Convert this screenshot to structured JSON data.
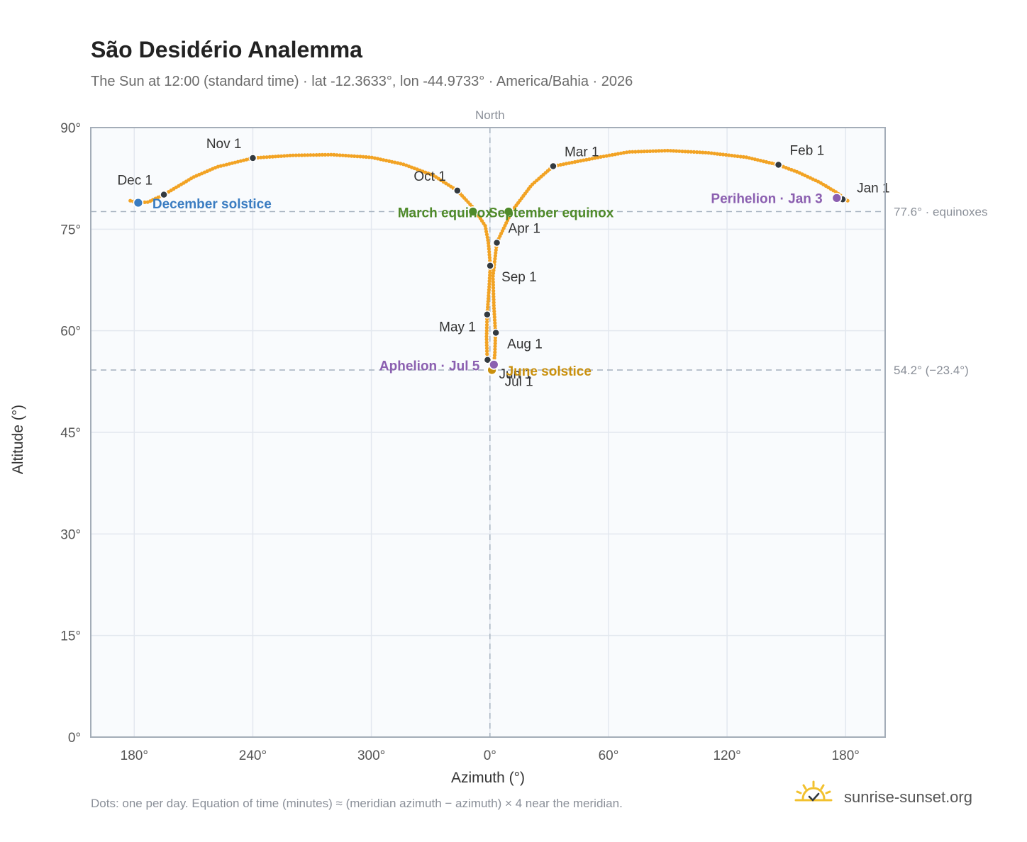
{
  "header": {
    "title": "São Desidério Analemma",
    "subtitle": "The Sun at 12:00 (standard time) · lat -12.3633°, lon -44.9733° · America/Bahia · 2026"
  },
  "footer": {
    "note": "Dots: one per day. Equation of time (minutes) ≈ (meridian azimuth − azimuth) × 4 near the meridian.",
    "brand": "sunrise-sunset.org",
    "brand_icon": "sun-horizon-icon"
  },
  "colors": {
    "curve": "#f2a324",
    "month_dot": "#333a40",
    "solstice_dec": "#3a7cc1",
    "solstice_jun": "#c9900e",
    "equinox": "#4f8a2a",
    "apsis": "#8b5fb0",
    "plot_bg": "#f9fbfd",
    "grid": "#e3e8ef",
    "axis": "#a4adb8",
    "ref_line": "#aab5c2"
  },
  "chart_data": {
    "type": "scatter",
    "xlabel": "Azimuth (°)",
    "ylabel": "Altitude (°)",
    "x_axis_note": "unwrapped azimuth: ticks 180°,240°,300°,0°,60°,120°,180°",
    "xlim": [
      162,
      200
    ],
    "ylim": [
      0,
      90
    ],
    "x_ticks": [
      {
        "value": 180,
        "label": "180°"
      },
      {
        "value": 240,
        "label": "240°"
      },
      {
        "value": 300,
        "label": "300°"
      },
      {
        "value": 360,
        "label": "0°"
      },
      {
        "value": 420,
        "label": "60°"
      },
      {
        "value": 480,
        "label": "120°"
      },
      {
        "value": 540,
        "label": "180°"
      }
    ],
    "y_ticks": [
      {
        "value": 0,
        "label": "0°"
      },
      {
        "value": 15,
        "label": "15°"
      },
      {
        "value": 30,
        "label": "30°"
      },
      {
        "value": 45,
        "label": "45°"
      },
      {
        "value": 60,
        "label": "60°"
      },
      {
        "value": 75,
        "label": "75°"
      },
      {
        "value": 90,
        "label": "90°"
      }
    ],
    "x_range": [
      158,
      560
    ],
    "north_line": {
      "x": 360,
      "label": "North"
    },
    "ref_lines": [
      {
        "y": 77.6,
        "label": "77.6° · equinoxes"
      },
      {
        "y": 54.2,
        "label": "54.2° (−23.4°)"
      }
    ],
    "curve": {
      "name": "",
      "dense_path": [
        [
          541,
          79.2
        ],
        [
          535,
          80.5
        ],
        [
          527,
          81.9
        ],
        [
          516,
          83.4
        ],
        [
          506,
          84.5
        ],
        [
          490,
          85.6
        ],
        [
          470,
          86.3
        ],
        [
          450,
          86.6
        ],
        [
          430,
          86.4
        ],
        [
          415,
          85.6
        ],
        [
          392,
          84.3
        ],
        [
          381,
          81.5
        ],
        [
          371,
          77.6
        ],
        [
          363.5,
          73.0
        ],
        [
          361.5,
          68.0
        ],
        [
          362,
          63.5
        ],
        [
          362.8,
          59.7
        ],
        [
          362.5,
          56.8
        ],
        [
          362,
          55.0
        ],
        [
          361,
          54.2
        ],
        [
          360,
          55.2
        ],
        [
          358.6,
          56.0
        ],
        [
          358.3,
          59.0
        ],
        [
          358.6,
          62.4
        ],
        [
          359.5,
          66.0
        ],
        [
          360.2,
          69.6
        ],
        [
          359.2,
          73.0
        ],
        [
          357.6,
          75.5
        ],
        [
          351.8,
          78.1
        ],
        [
          343.5,
          80.7
        ],
        [
          331,
          83.0
        ],
        [
          316,
          84.6
        ],
        [
          300,
          85.6
        ],
        [
          280,
          86.0
        ],
        [
          260,
          85.9
        ],
        [
          240,
          85.5
        ],
        [
          222,
          84.2
        ],
        [
          210,
          82.7
        ],
        [
          195,
          80.1
        ],
        [
          187,
          79.0
        ],
        [
          182,
          78.9
        ],
        [
          178,
          79.2
        ]
      ]
    },
    "month_points": [
      {
        "label": "Jan 1",
        "x": 538.5,
        "y": 79.4,
        "label_dx": 20,
        "label_dy": -10
      },
      {
        "label": "Feb 1",
        "x": 506,
        "y": 84.5,
        "label_dx": 16,
        "label_dy": -14
      },
      {
        "label": "Mar 1",
        "x": 392,
        "y": 84.3,
        "label_dx": 16,
        "label_dy": -14
      },
      {
        "label": "Apr 1",
        "x": 363.5,
        "y": 73.0,
        "label_dx": 16,
        "label_dy": -14
      },
      {
        "label": "May 1",
        "x": 358.6,
        "y": 62.4,
        "label_dx": -16,
        "label_dy": 24,
        "anchor": "end"
      },
      {
        "label": "Jun 1",
        "x": 358.8,
        "y": 55.7,
        "label_dx": 16,
        "label_dy": 26
      },
      {
        "label": "Jul 1",
        "x": 361,
        "y": 54.6,
        "label_dx": 18,
        "label_dy": 26
      },
      {
        "label": "Aug 1",
        "x": 363,
        "y": 59.7,
        "label_dx": 16,
        "label_dy": 22
      },
      {
        "label": "Sep 1",
        "x": 360.1,
        "y": 69.6,
        "label_dx": 16,
        "label_dy": 22
      },
      {
        "label": "Oct 1",
        "x": 343.5,
        "y": 80.7,
        "label_dx": -16,
        "label_dy": -14,
        "anchor": "end"
      },
      {
        "label": "Nov 1",
        "x": 240,
        "y": 85.5,
        "label_dx": -16,
        "label_dy": -14,
        "anchor": "end"
      },
      {
        "label": "Dec 1",
        "x": 195,
        "y": 80.1,
        "label_dx": -16,
        "label_dy": -14,
        "anchor": "end"
      }
    ],
    "events": [
      {
        "label": "December solstice",
        "x": 182,
        "y": 78.9,
        "color_key": "solstice_dec",
        "label_dx": 20,
        "label_dy": 8,
        "anchor": "start"
      },
      {
        "label": "June solstice",
        "x": 361,
        "y": 54.2,
        "color_key": "solstice_jun",
        "label_dx": 20,
        "label_dy": 8,
        "anchor": "start"
      },
      {
        "label": "March equinox",
        "x": 351.4,
        "y": 77.6,
        "color_key": "equinox",
        "label_dx": 28,
        "label_dy": 8,
        "anchor": "end"
      },
      {
        "label": "September equinox",
        "x": 369.4,
        "y": 77.6,
        "color_key": "equinox",
        "label_dx": -28,
        "label_dy": 8,
        "anchor": "start"
      },
      {
        "label": "Perihelion · Jan 3",
        "x": 535.5,
        "y": 79.6,
        "color_key": "apsis",
        "label_dx": -20,
        "label_dy": 7,
        "anchor": "end"
      },
      {
        "label": "Aphelion · Jul 5",
        "x": 362,
        "y": 55.0,
        "color_key": "apsis",
        "label_dx": -20,
        "label_dy": 8,
        "anchor": "end"
      }
    ]
  }
}
